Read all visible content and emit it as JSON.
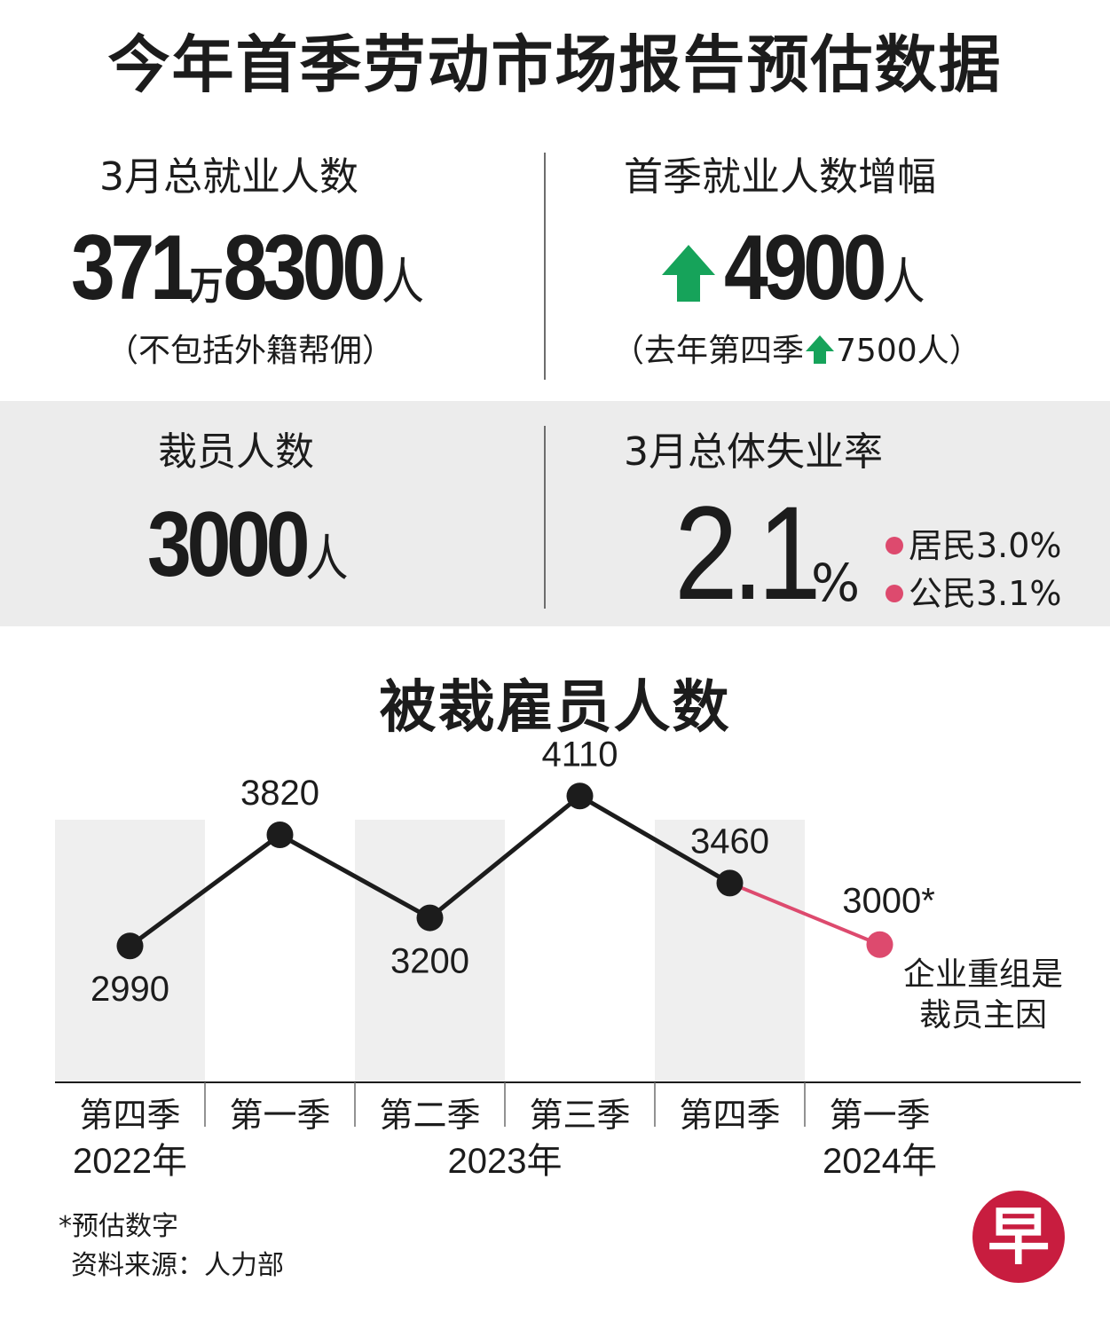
{
  "title": "今年首季劳动市场报告预估数据",
  "stats": {
    "employment": {
      "label": "3月总就业人数",
      "value_a": "371",
      "value_wan": "万",
      "value_b": "8300",
      "unit": "人",
      "note": "（不包括外籍帮佣）"
    },
    "growth": {
      "label": "首季就业人数增幅",
      "value": "4900",
      "unit": "人",
      "note_prefix": "（去年第四季",
      "note_suffix": "7500人）",
      "arrow_icon": "up-arrow-icon",
      "arrow_color": "#16a35a"
    },
    "layoffs": {
      "label": "裁员人数",
      "value": "3000",
      "unit": "人"
    },
    "unemployment": {
      "label": "3月总体失业率",
      "value": "2.1",
      "unit": "%",
      "residents": "居民3.0%",
      "citizens": "公民3.1%",
      "dot_color": "#dd4a6e"
    }
  },
  "chart_data": {
    "type": "line",
    "title": "被裁雇员人数",
    "categories": [
      "第四季",
      "第一季",
      "第二季",
      "第三季",
      "第四季",
      "第一季"
    ],
    "years": [
      {
        "label": "2022年",
        "span": [
          0,
          0
        ]
      },
      {
        "label": "2023年",
        "span": [
          1,
          4
        ]
      },
      {
        "label": "2024年",
        "span": [
          5,
          5
        ]
      }
    ],
    "values": [
      2990,
      3820,
      3200,
      4110,
      3460,
      3000
    ],
    "data_labels": [
      "2990",
      "3820",
      "3200",
      "4110",
      "3460",
      "3000*"
    ],
    "estimated_index": 5,
    "annotation": [
      "企业重组是",
      "裁员主因"
    ],
    "line_color": "#1c1c1c",
    "estimate_color": "#dd4a6e",
    "band_color": "#efefef",
    "ylim": [
      2700,
      4300
    ]
  },
  "footer": {
    "note": "*预估数字",
    "source": "资料来源：人力部",
    "logo_char": "早"
  }
}
